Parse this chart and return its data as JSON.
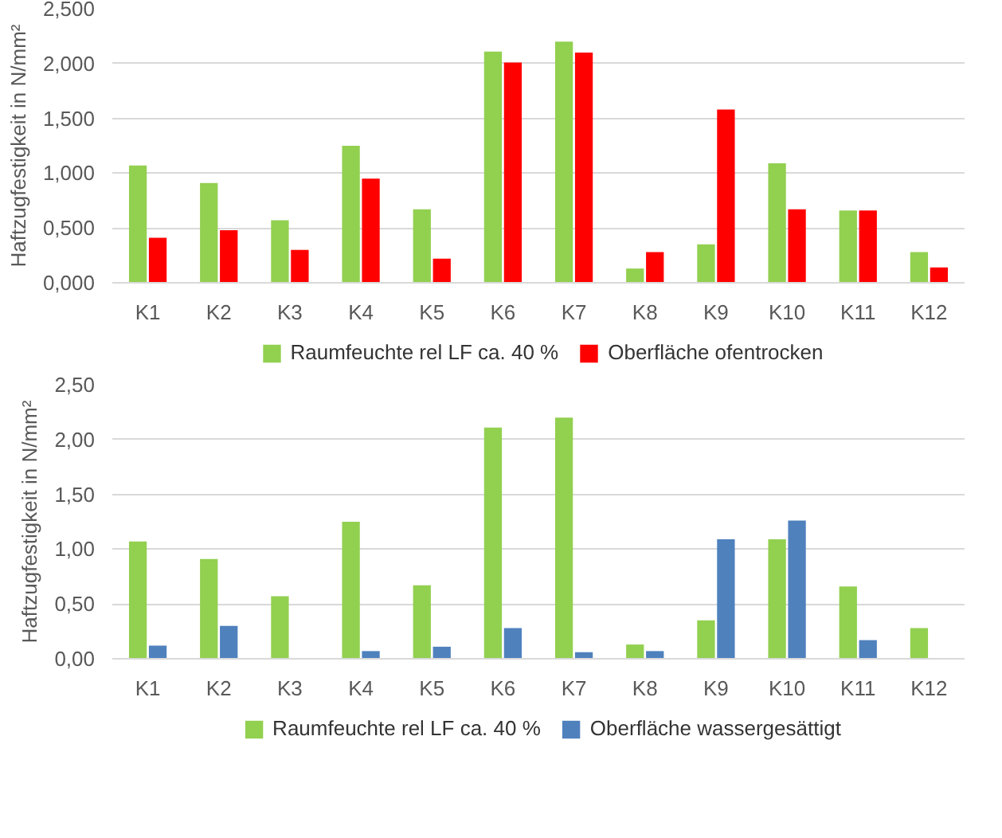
{
  "chart_data": [
    {
      "type": "bar",
      "ylabel": "Haftzugfestigkeit in N/mm²",
      "categories": [
        "K1",
        "K2",
        "K3",
        "K4",
        "K5",
        "K6",
        "K7",
        "K8",
        "K9",
        "K10",
        "K11",
        "K12"
      ],
      "series": [
        {
          "name": "Raumfeuchte rel LF ca. 40 %",
          "color": "#92d050",
          "values": [
            1.07,
            0.91,
            0.57,
            1.25,
            0.67,
            2.11,
            2.2,
            0.13,
            0.35,
            1.09,
            0.66,
            0.28
          ]
        },
        {
          "name": "Oberfläche ofentrocken",
          "color": "#ff0000",
          "values": [
            0.41,
            0.48,
            0.3,
            0.95,
            0.22,
            2.01,
            2.1,
            0.28,
            1.58,
            0.67,
            0.66,
            0.14
          ]
        }
      ],
      "ylim": [
        0,
        2.5
      ],
      "yticks": [
        {
          "value": 0,
          "label": "0,000"
        },
        {
          "value": 0.5,
          "label": "0,500"
        },
        {
          "value": 1,
          "label": "1,000"
        },
        {
          "value": 1.5,
          "label": "1,500"
        },
        {
          "value": 2,
          "label": "2,000"
        },
        {
          "value": 2.5,
          "label": "2,500"
        }
      ],
      "grid": "y",
      "legend": "bottom"
    },
    {
      "type": "bar",
      "ylabel": "Haftzugfestigkeit in N/mm²",
      "categories": [
        "K1",
        "K2",
        "K3",
        "K4",
        "K5",
        "K6",
        "K7",
        "K8",
        "K9",
        "K10",
        "K11",
        "K12"
      ],
      "series": [
        {
          "name": "Raumfeuchte rel LF ca. 40 %",
          "color": "#92d050",
          "values": [
            1.07,
            0.91,
            0.57,
            1.25,
            0.67,
            2.11,
            2.2,
            0.13,
            0.35,
            1.09,
            0.66,
            0.28
          ]
        },
        {
          "name": "Oberfläche wassergesättigt",
          "color": "#4f81bd",
          "values": [
            0.12,
            0.3,
            null,
            0.07,
            0.11,
            0.28,
            0.06,
            0.07,
            1.09,
            1.26,
            0.17,
            null
          ]
        }
      ],
      "ylim": [
        0,
        2.5
      ],
      "yticks": [
        {
          "value": 0,
          "label": "0,00"
        },
        {
          "value": 0.5,
          "label": "0,50"
        },
        {
          "value": 1,
          "label": "1,00"
        },
        {
          "value": 1.5,
          "label": "1,50"
        },
        {
          "value": 2,
          "label": "2,00"
        },
        {
          "value": 2.5,
          "label": "2,50"
        }
      ],
      "grid": "y",
      "legend": "bottom"
    }
  ]
}
